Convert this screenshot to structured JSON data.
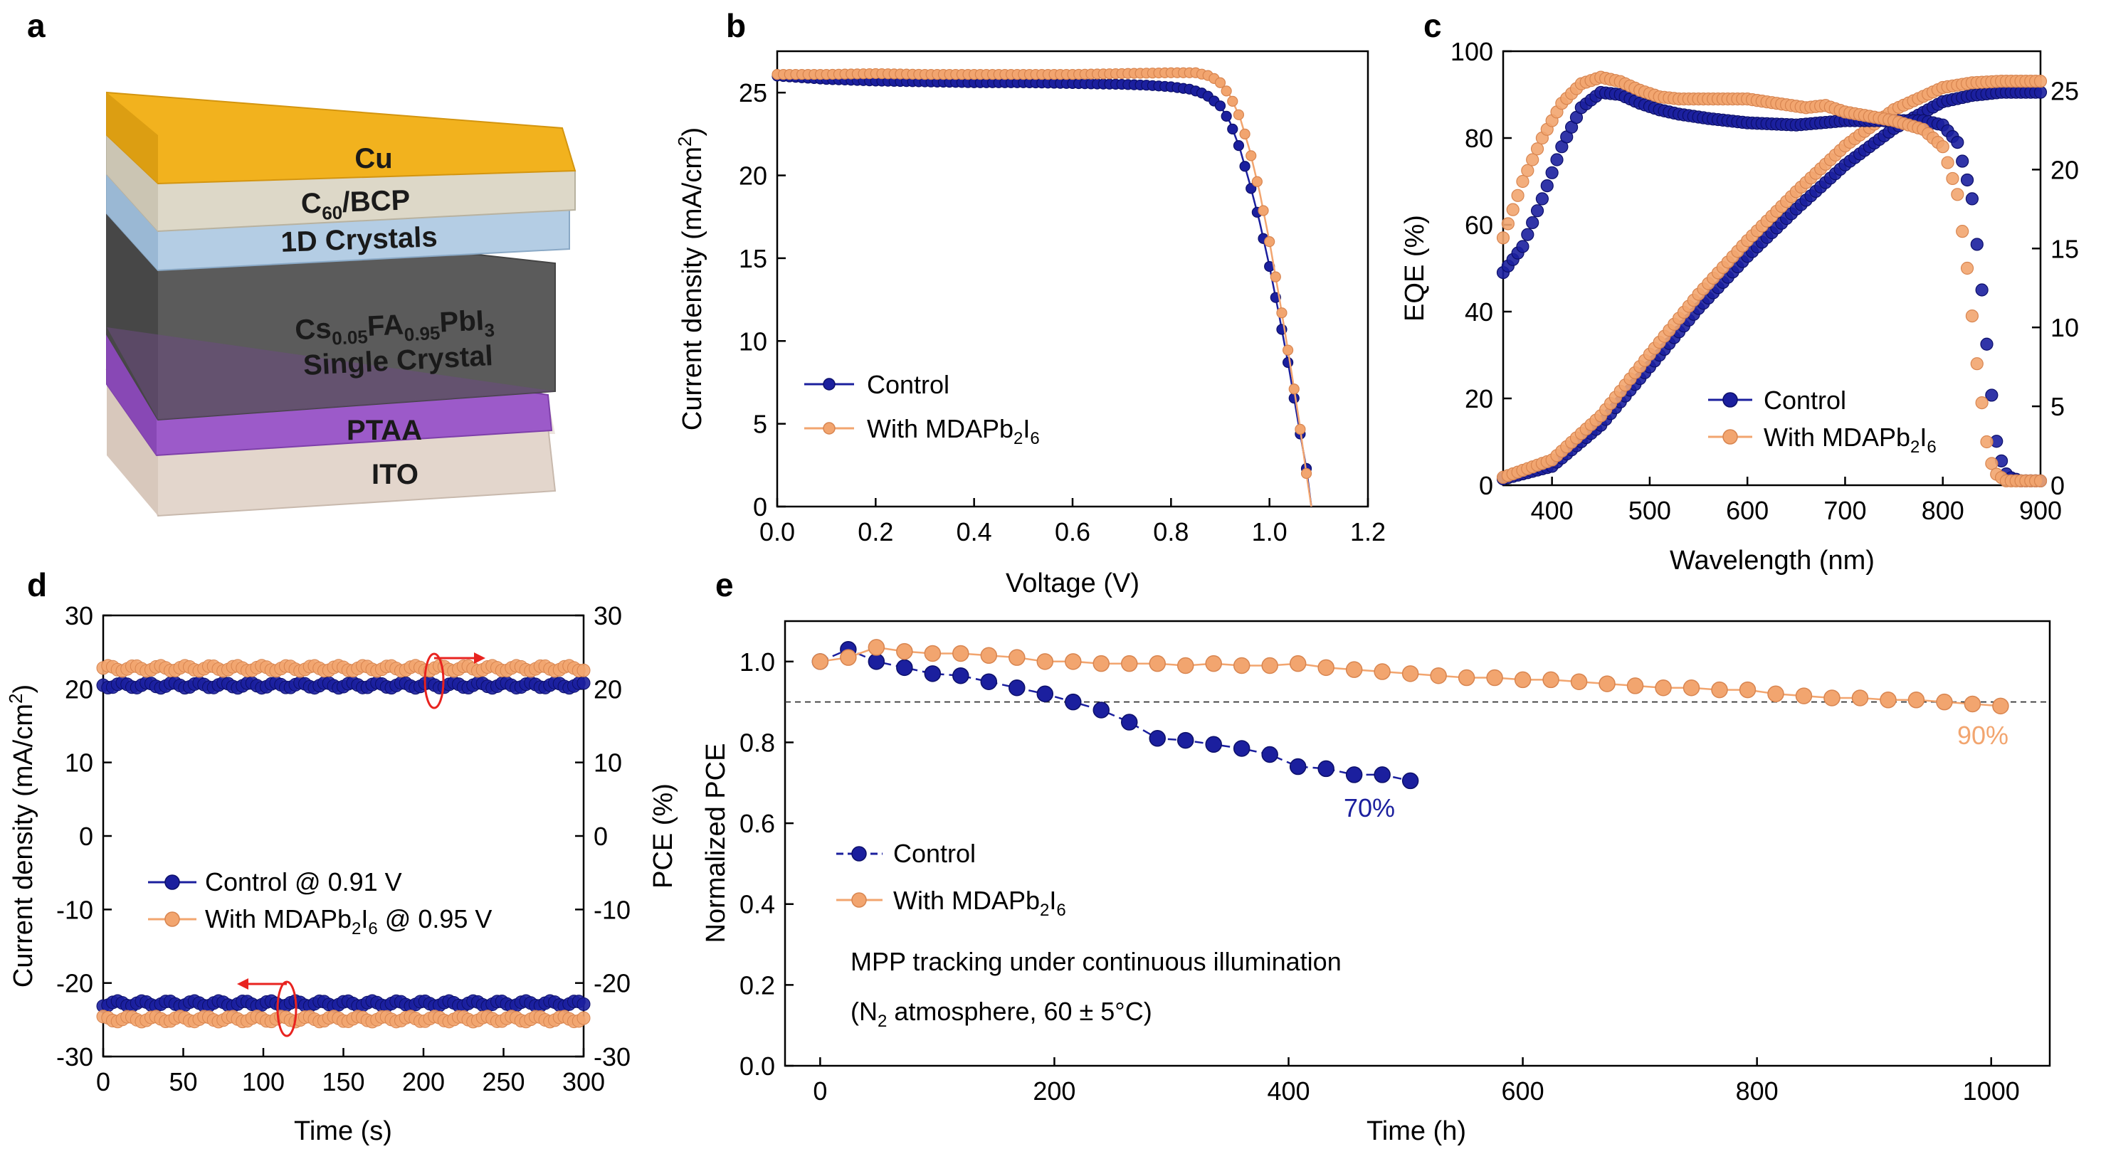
{
  "colors": {
    "control": "#1b1f9e",
    "mdap": "#f2a56f",
    "arrow": "#e8231f",
    "cu": "#f2b21e",
    "c60": "#ddd8c8",
    "crystals1d": "#b4cde4",
    "perovskite": "#5b5b5b",
    "ptaa": "#9c5ac9",
    "ito": "#e3d6cc"
  },
  "panel_a": {
    "label": "a",
    "layers": {
      "cu": "Cu",
      "c60_pre": "C",
      "c60_sub": "60",
      "c60_post": "/BCP",
      "crystals": "1D Crystals",
      "pv_cs": "Cs",
      "pv_cs_sub": "0.05",
      "pv_fa": "FA",
      "pv_fa_sub": "0.95",
      "pv_pbi": "PbI",
      "pv_i_sub": "3",
      "pv_line2": "Single Crystal",
      "ptaa": "PTAA",
      "ito": "ITO"
    }
  },
  "chart_data": [
    {
      "panel": "b",
      "type": "line",
      "xlabel": "Voltage (V)",
      "ylabel_main": "Current density (mA/cm",
      "ylabel_sup": "2",
      "ylabel_end": ")",
      "xlim": [
        0,
        1.2
      ],
      "ylim": [
        0,
        27.5
      ],
      "xticks": [
        "0.0",
        "0.2",
        "0.4",
        "0.6",
        "0.8",
        "1.0",
        "1.2"
      ],
      "yticks": [
        "0",
        "5",
        "10",
        "15",
        "20",
        "25"
      ],
      "series": [
        {
          "name": "Control",
          "color": "#1b1f9e",
          "points": [
            [
              0,
              26.0
            ],
            [
              0.1,
              25.8
            ],
            [
              0.2,
              25.7
            ],
            [
              0.3,
              25.65
            ],
            [
              0.4,
              25.6
            ],
            [
              0.5,
              25.6
            ],
            [
              0.6,
              25.55
            ],
            [
              0.7,
              25.5
            ],
            [
              0.75,
              25.45
            ],
            [
              0.8,
              25.35
            ],
            [
              0.84,
              25.2
            ],
            [
              0.87,
              24.9
            ],
            [
              0.9,
              24.2
            ],
            [
              0.92,
              23.2
            ],
            [
              0.94,
              21.6
            ],
            [
              0.96,
              19.5
            ],
            [
              0.98,
              17.2
            ],
            [
              1.0,
              14.5
            ],
            [
              1.02,
              11.5
            ],
            [
              1.04,
              8.3
            ],
            [
              1.06,
              4.8
            ],
            [
              1.075,
              2.3
            ],
            [
              1.085,
              0
            ]
          ]
        },
        {
          "name": "With MDAPb2I6",
          "color": "#f2a56f",
          "points": [
            [
              0,
              26.1
            ],
            [
              0.1,
              26.1
            ],
            [
              0.2,
              26.15
            ],
            [
              0.3,
              26.1
            ],
            [
              0.4,
              26.1
            ],
            [
              0.5,
              26.1
            ],
            [
              0.6,
              26.1
            ],
            [
              0.7,
              26.15
            ],
            [
              0.8,
              26.2
            ],
            [
              0.85,
              26.2
            ],
            [
              0.88,
              26.0
            ],
            [
              0.9,
              25.6
            ],
            [
              0.92,
              24.8
            ],
            [
              0.94,
              23.5
            ],
            [
              0.96,
              21.5
            ],
            [
              0.98,
              19.0
            ],
            [
              1.0,
              16.0
            ],
            [
              1.02,
              12.6
            ],
            [
              1.04,
              9.0
            ],
            [
              1.06,
              5.2
            ],
            [
              1.075,
              2.0
            ],
            [
              1.085,
              0
            ]
          ]
        }
      ]
    },
    {
      "panel": "c",
      "type": "scatter",
      "xlabel": "Wavelength (nm)",
      "ylabel": "EQE (%)",
      "xlim": [
        350,
        900
      ],
      "ylim_left": [
        0,
        100
      ],
      "ylim_right": [
        0,
        27.5
      ],
      "xticks": [
        "400",
        "500",
        "600",
        "700",
        "800",
        "900"
      ],
      "yticks_left": [
        "0",
        "20",
        "40",
        "60",
        "80",
        "100"
      ],
      "yticks_right": [
        "0",
        "5",
        "10",
        "15",
        "20",
        "25"
      ],
      "eqe": [
        {
          "name": "Control",
          "color": "#1b1f9e",
          "points": [
            [
              350,
              49
            ],
            [
              370,
              55
            ],
            [
              390,
              66
            ],
            [
              410,
              78
            ],
            [
              430,
              87
            ],
            [
              450,
              90.5
            ],
            [
              470,
              90
            ],
            [
              490,
              88
            ],
            [
              510,
              86.5
            ],
            [
              530,
              85.5
            ],
            [
              560,
              84.5
            ],
            [
              600,
              83.5
            ],
            [
              650,
              83
            ],
            [
              700,
              84
            ],
            [
              750,
              84
            ],
            [
              780,
              84
            ],
            [
              800,
              83
            ],
            [
              815,
              79
            ],
            [
              830,
              66
            ],
            [
              840,
              45
            ],
            [
              848,
              25
            ],
            [
              856,
              8
            ],
            [
              866,
              2
            ],
            [
              880,
              1
            ],
            [
              900,
              1
            ]
          ]
        },
        {
          "name": "With MDAPb2I6",
          "color": "#f2a56f",
          "points": [
            [
              350,
              57
            ],
            [
              370,
              70
            ],
            [
              390,
              80
            ],
            [
              410,
              88
            ],
            [
              430,
              92.5
            ],
            [
              450,
              94
            ],
            [
              470,
              93
            ],
            [
              490,
              91
            ],
            [
              510,
              89.5
            ],
            [
              530,
              89
            ],
            [
              560,
              89
            ],
            [
              600,
              89
            ],
            [
              630,
              88
            ],
            [
              660,
              87
            ],
            [
              680,
              87.5
            ],
            [
              700,
              86
            ],
            [
              750,
              84
            ],
            [
              780,
              82
            ],
            [
              800,
              78
            ],
            [
              815,
              67
            ],
            [
              825,
              50
            ],
            [
              835,
              28
            ],
            [
              845,
              10
            ],
            [
              852,
              3
            ],
            [
              865,
              1
            ],
            [
              900,
              1
            ]
          ]
        }
      ],
      "integrated": [
        {
          "name": "Control",
          "color": "#1b1f9e",
          "points": [
            [
              350,
              0.4
            ],
            [
              400,
              1.2
            ],
            [
              450,
              3.8
            ],
            [
              500,
              7.5
            ],
            [
              550,
              11.2
            ],
            [
              600,
              14.5
            ],
            [
              650,
              17.5
            ],
            [
              700,
              20.3
            ],
            [
              750,
              22.6
            ],
            [
              800,
              24.3
            ],
            [
              830,
              24.7
            ],
            [
              860,
              24.9
            ],
            [
              900,
              24.9
            ]
          ]
        },
        {
          "name": "With MDAPb2I6",
          "color": "#f2a56f",
          "points": [
            [
              350,
              0.5
            ],
            [
              400,
              1.6
            ],
            [
              450,
              4.4
            ],
            [
              500,
              8.3
            ],
            [
              550,
              12.1
            ],
            [
              600,
              15.5
            ],
            [
              650,
              18.6
            ],
            [
              700,
              21.5
            ],
            [
              750,
              23.8
            ],
            [
              800,
              25.2
            ],
            [
              830,
              25.5
            ],
            [
              860,
              25.6
            ],
            [
              900,
              25.6
            ]
          ]
        }
      ]
    },
    {
      "panel": "d",
      "type": "scatter",
      "xlabel": "Time (s)",
      "ylabel_left_main": "Current density (mA/cm",
      "ylabel_left_sup": "2",
      "ylabel_left_end": ")",
      "ylabel_right": "PCE (%)",
      "xlim": [
        0,
        300
      ],
      "ylim": [
        -30,
        30
      ],
      "xticks": [
        "0",
        "50",
        "100",
        "150",
        "200",
        "250",
        "300"
      ],
      "yticks_left": [
        "-30",
        "-20",
        "-10",
        "0",
        "10",
        "20",
        "30"
      ],
      "yticks_right": [
        "-30",
        "-20",
        "-10",
        "0",
        "10",
        "20",
        "30"
      ],
      "series": [
        {
          "name": "Control @ 0.91 V",
          "color": "#1b1f9e",
          "pce": 20.5,
          "current_density": -22.8
        },
        {
          "name": "With MDAPb2I6 @ 0.95 V",
          "color": "#f2a56f",
          "pce": 22.8,
          "current_density": -24.9
        }
      ]
    },
    {
      "panel": "e",
      "type": "line",
      "xlabel": "Time (h)",
      "ylabel": "Normalized PCE",
      "xlim": [
        -30,
        1050
      ],
      "ylim": [
        0,
        1.1
      ],
      "xticks": [
        "0",
        "200",
        "400",
        "600",
        "800",
        "1000"
      ],
      "yticks": [
        "0.0",
        "0.2",
        "0.4",
        "0.6",
        "0.8",
        "1.0"
      ],
      "reference_line": 0.9,
      "series": [
        {
          "name": "Control",
          "color": "#1b1f9e",
          "points": [
            [
              0,
              1.0
            ],
            [
              24,
              1.03
            ],
            [
              48,
              1.0
            ],
            [
              72,
              0.985
            ],
            [
              96,
              0.97
            ],
            [
              120,
              0.965
            ],
            [
              144,
              0.95
            ],
            [
              168,
              0.935
            ],
            [
              192,
              0.92
            ],
            [
              216,
              0.9
            ],
            [
              240,
              0.88
            ],
            [
              264,
              0.85
            ],
            [
              288,
              0.81
            ],
            [
              312,
              0.805
            ],
            [
              336,
              0.795
            ],
            [
              360,
              0.785
            ],
            [
              384,
              0.77
            ],
            [
              408,
              0.74
            ],
            [
              432,
              0.735
            ],
            [
              456,
              0.72
            ],
            [
              480,
              0.72
            ],
            [
              504,
              0.705
            ]
          ]
        },
        {
          "name": "With MDAPb2I6",
          "color": "#f2a56f",
          "points": [
            [
              0,
              1.0
            ],
            [
              24,
              1.01
            ],
            [
              48,
              1.035
            ],
            [
              72,
              1.025
            ],
            [
              96,
              1.02
            ],
            [
              120,
              1.02
            ],
            [
              144,
              1.015
            ],
            [
              168,
              1.01
            ],
            [
              192,
              1.0
            ],
            [
              216,
              1.0
            ],
            [
              240,
              0.995
            ],
            [
              264,
              0.995
            ],
            [
              288,
              0.995
            ],
            [
              312,
              0.99
            ],
            [
              336,
              0.995
            ],
            [
              360,
              0.99
            ],
            [
              384,
              0.99
            ],
            [
              408,
              0.995
            ],
            [
              432,
              0.985
            ],
            [
              456,
              0.98
            ],
            [
              480,
              0.975
            ],
            [
              504,
              0.97
            ],
            [
              528,
              0.965
            ],
            [
              552,
              0.96
            ],
            [
              576,
              0.96
            ],
            [
              600,
              0.955
            ],
            [
              624,
              0.955
            ],
            [
              648,
              0.95
            ],
            [
              672,
              0.945
            ],
            [
              696,
              0.94
            ],
            [
              720,
              0.935
            ],
            [
              744,
              0.935
            ],
            [
              768,
              0.93
            ],
            [
              792,
              0.93
            ],
            [
              816,
              0.92
            ],
            [
              840,
              0.915
            ],
            [
              864,
              0.91
            ],
            [
              888,
              0.91
            ],
            [
              912,
              0.905
            ],
            [
              936,
              0.905
            ],
            [
              960,
              0.9
            ],
            [
              984,
              0.895
            ],
            [
              1008,
              0.89
            ]
          ]
        }
      ],
      "annotations": {
        "control_final": "70%",
        "mdap_final": "90%",
        "note_line1": "MPP tracking under continuous illumination",
        "note_open": "(",
        "note_n": "N",
        "note_n_sub": "2",
        "note_rest": " atmosphere, 60 ± 5°C)"
      }
    }
  ],
  "legends": {
    "control": "Control",
    "mdap_pre": "With MDAPb",
    "mdap_sub1": "2",
    "mdap_mid": "I",
    "mdap_sub2": "6",
    "d_control": "Control @ 0.91 V",
    "d_mdap_post": " @ 0.95 V"
  },
  "panel_labels": {
    "b": "b",
    "c": "c",
    "d": "d",
    "e": "e"
  }
}
